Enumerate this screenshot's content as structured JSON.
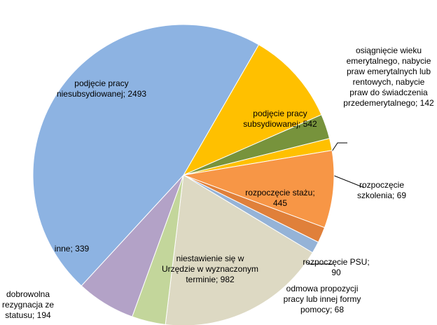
{
  "chart_data": {
    "type": "pie",
    "values": [
      542,
      142,
      69,
      445,
      90,
      68,
      982,
      194,
      339,
      2493
    ],
    "value_labels": [
      "podjęcie pracy subsydiowanej; 542",
      "osiągnięcie wieku emerytalnego, nabycie praw emerytalnych lub rentowych, nabycie praw do świadczenia przedemerytalnego; 142",
      "rozpoczęcie szkolenia; 69",
      "rozpoczęcie stażu; 445",
      "rozpoczęcie PSU; 90",
      "odmowa propozycji pracy lub innej formy pomocy; 68",
      "niestawienie się w Urzędzie w wyznaczonym terminie; 982",
      "dobrowolna rezygnacja ze statusu; 194",
      "inne; 339",
      "podjęcie pracy niesubsydiowanej; 2493"
    ],
    "colors": [
      "#ffc000",
      "#77933c",
      "#ffc000",
      "#f79646",
      "#e0803a",
      "#95b3d7",
      "#ddd9c3",
      "#c3d69b",
      "#b3a2c7",
      "#8db3e2"
    ]
  }
}
